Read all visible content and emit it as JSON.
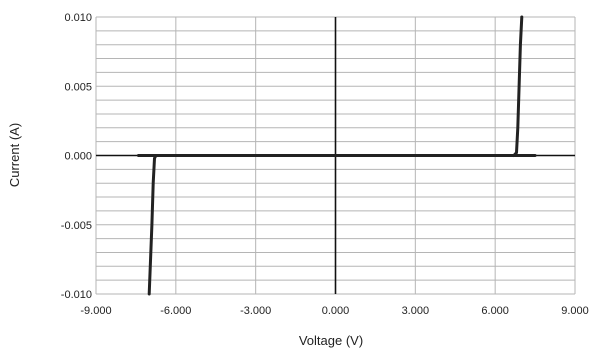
{
  "chart_data": {
    "type": "line",
    "xlabel": "Voltage (V)",
    "ylabel": "Current (A)",
    "xlim": [
      -9,
      9
    ],
    "ylim": [
      -0.01,
      0.01
    ],
    "x_ticks": [
      "-9.000",
      "-6.000",
      "-3.000",
      "0.000",
      "3.000",
      "6.000",
      "9.000"
    ],
    "y_ticks": [
      "0.010",
      "0.005",
      "0.000",
      "-0.005",
      "-0.010"
    ],
    "x_tick_values": [
      -9,
      -6,
      -3,
      0,
      3,
      6,
      9
    ],
    "y_tick_values": [
      0.01,
      0.005,
      0,
      -0.005,
      -0.01
    ],
    "x_grid_step": 3,
    "y_grid_step": 0.001,
    "grid": true,
    "legend": "none",
    "series": [
      {
        "x": [
          -7.4,
          -6.75,
          -6.8,
          -6.85,
          -6.9,
          -7.0,
          6.7,
          6.8,
          6.85,
          6.9,
          6.95,
          7.0,
          7.5
        ],
        "y": [
          0.0,
          0.0,
          -0.0002,
          -0.002,
          -0.005,
          -0.01,
          0.0,
          0.0002,
          0.002,
          0.005,
          0.008,
          0.01,
          0.0
        ],
        "segments": [
          [
            0,
            5
          ],
          [
            6,
            11
          ],
          [
            0,
            12
          ]
        ]
      }
    ],
    "line_color": "#222222"
  }
}
